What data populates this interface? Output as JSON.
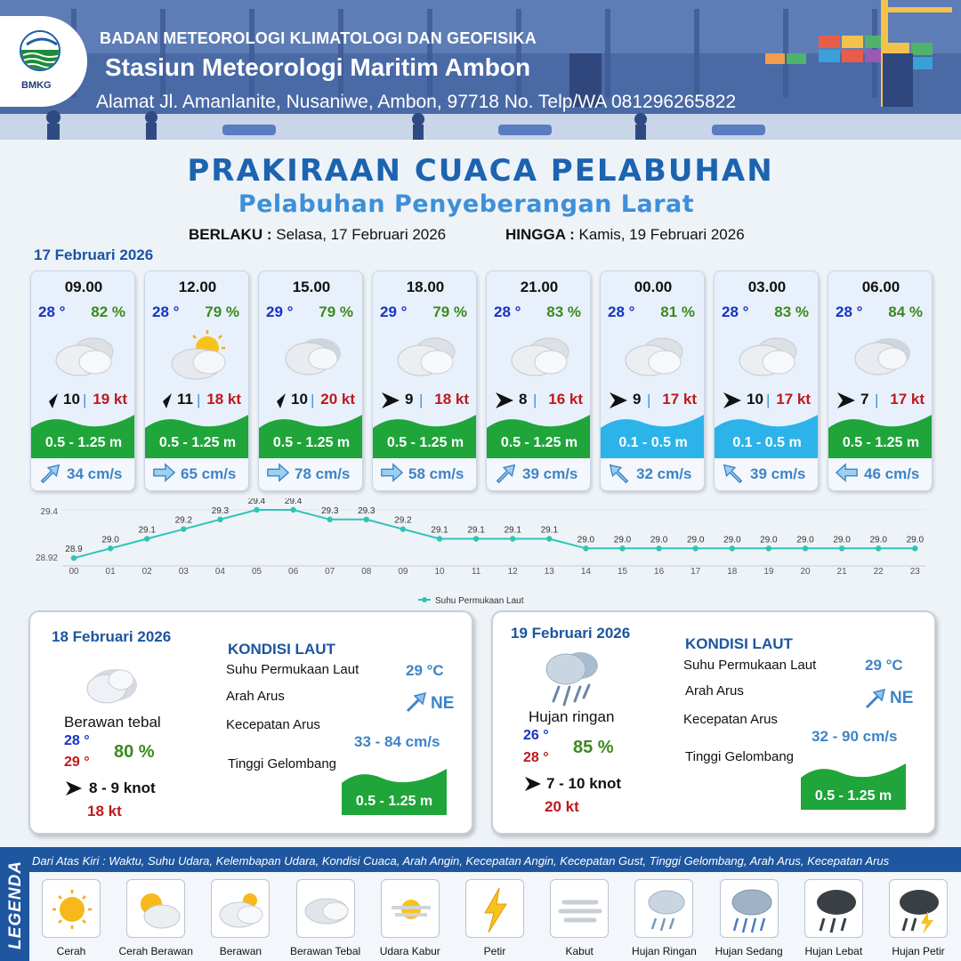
{
  "header": {
    "logo_label": "BMKG",
    "agency": "BADAN METEOROLOGI KLIMATOLOGI DAN GEOFISIKA",
    "station": "Stasiun Meteorologi Maritim Ambon",
    "address": "Alamat Jl. Amanlanite, Nusaniwe, Ambon, 97718   No. Telp/WA  081296265822"
  },
  "title": "PRAKIRAAN CUACA PELABUHAN",
  "subtitle": "Pelabuhan Penyeberangan Larat",
  "validity": {
    "from_label": "BERLAKU :",
    "from_value": "Selasa, 17 Februari 2026",
    "to_label": "HINGGA :",
    "to_value": "Kamis, 19 Februari 2026"
  },
  "main_date": "17 Februari 2026",
  "forecasts": [
    {
      "time": "09.00",
      "temp": "28 °",
      "humidity": "82 %",
      "weather": "Berawan",
      "wind_dir_icon": "wind-arrow-northeast-icon",
      "wind_speed": "10",
      "gust": "19 kt",
      "wave": "0.5 - 1.25 m",
      "wave_color": "#1fa53a",
      "current_dir_icon": "current-arrow-northeast-icon",
      "current": "34 cm/s"
    },
    {
      "time": "12.00",
      "temp": "28 °",
      "humidity": "79 %",
      "weather": "Cerah Berawan",
      "wind_dir_icon": "wind-arrow-northeast-icon",
      "wind_speed": "11",
      "gust": "18 kt",
      "wave": "0.5 - 1.25 m",
      "wave_color": "#1fa53a",
      "current_dir_icon": "current-arrow-east-icon",
      "current": "65 cm/s"
    },
    {
      "time": "15.00",
      "temp": "29 °",
      "humidity": "79 %",
      "weather": "Berawan Tebal",
      "wind_dir_icon": "wind-arrow-northeast-icon",
      "wind_speed": "10",
      "gust": "20 kt",
      "wave": "0.5 - 1.25 m",
      "wave_color": "#1fa53a",
      "current_dir_icon": "current-arrow-east-icon",
      "current": "78 cm/s"
    },
    {
      "time": "18.00",
      "temp": "29 °",
      "humidity": "79 %",
      "weather": "Berawan",
      "wind_dir_icon": "wind-arrow-east-icon",
      "wind_speed": "9",
      "gust": "18 kt",
      "wave": "0.5 - 1.25 m",
      "wave_color": "#1fa53a",
      "current_dir_icon": "current-arrow-east-icon",
      "current": "58 cm/s"
    },
    {
      "time": "21.00",
      "temp": "28 °",
      "humidity": "83 %",
      "weather": "Berawan",
      "wind_dir_icon": "wind-arrow-east-icon",
      "wind_speed": "8",
      "gust": "16 kt",
      "wave": "0.5 - 1.25 m",
      "wave_color": "#1fa53a",
      "current_dir_icon": "current-arrow-northeast-icon",
      "current": "39 cm/s"
    },
    {
      "time": "00.00",
      "temp": "28 °",
      "humidity": "81 %",
      "weather": "Berawan",
      "wind_dir_icon": "wind-arrow-east-icon",
      "wind_speed": "9",
      "gust": "17 kt",
      "wave": "0.1 - 0.5 m",
      "wave_color": "#2cb3ea",
      "current_dir_icon": "current-arrow-northwest-icon",
      "current": "32 cm/s"
    },
    {
      "time": "03.00",
      "temp": "28 °",
      "humidity": "83 %",
      "weather": "Berawan",
      "wind_dir_icon": "wind-arrow-east-icon",
      "wind_speed": "10",
      "gust": "17 kt",
      "wave": "0.1 - 0.5 m",
      "wave_color": "#2cb3ea",
      "current_dir_icon": "current-arrow-northwest-icon",
      "current": "39 cm/s"
    },
    {
      "time": "06.00",
      "temp": "28 °",
      "humidity": "84 %",
      "weather": "Berawan Tebal",
      "wind_dir_icon": "wind-arrow-east-icon",
      "wind_speed": "7",
      "gust": "17 kt",
      "wave": "0.5 - 1.25 m",
      "wave_color": "#1fa53a",
      "current_dir_icon": "current-arrow-west-icon",
      "current": "46 cm/s"
    }
  ],
  "chart_data": {
    "type": "line",
    "title": "",
    "xlabel": "",
    "ylabel": "",
    "x": [
      "00",
      "01",
      "02",
      "03",
      "04",
      "05",
      "06",
      "07",
      "08",
      "09",
      "10",
      "11",
      "12",
      "13",
      "14",
      "15",
      "16",
      "17",
      "18",
      "19",
      "20",
      "21",
      "22",
      "23"
    ],
    "series": [
      {
        "name": "Suhu Permukaan Laut",
        "values": [
          28.9,
          29.0,
          29.1,
          29.2,
          29.3,
          29.4,
          29.4,
          29.3,
          29.3,
          29.2,
          29.1,
          29.1,
          29.1,
          29.1,
          29.0,
          29.0,
          29.0,
          29.0,
          29.0,
          29.0,
          29.0,
          29.0,
          29.0,
          29.0
        ],
        "labels": [
          "28.9",
          "29.0",
          "29.1",
          "29.2",
          "29.3",
          "29.4",
          "29.4",
          "29.3",
          "29.3",
          "29.2",
          "29.1",
          "29.1",
          "29.1",
          "29.1",
          "29.0",
          "29.0",
          "29.0",
          "29.0",
          "29.0",
          "29.0",
          "29.0",
          "29.0",
          "29.0",
          "29.0"
        ],
        "color": "#2ec4b6"
      }
    ],
    "ylim": [
      28.92,
      29.4
    ],
    "y_tick_labels": [
      "29.4",
      "28.92"
    ],
    "grid": false,
    "legend": "bottom"
  },
  "days": [
    {
      "date": "18 Februari 2026",
      "weather": "Berawan tebal",
      "temp_min": "28 °",
      "temp_max": "29 °",
      "humidity": "80 %",
      "wind": "8  - 9 knot",
      "gust": "18 kt",
      "kondisi_title": "KONDISI LAUT",
      "sst_label": "Suhu Permukaan Laut",
      "sst_value": "29 °C",
      "current_dir_label": "Arah Arus",
      "current_dir_value": "NE",
      "current_speed_label": "Kecepatan Arus",
      "current_speed_value": "33 - 84 cm/s",
      "wave_label": "Tinggi Gelombang",
      "wave_value": "0.5 - 1.25 m"
    },
    {
      "date": "19 Februari 2026",
      "weather": "Hujan ringan",
      "temp_min": "26 °",
      "temp_max": "28 °",
      "humidity": "85 %",
      "wind": "7  - 10 knot",
      "gust": "20 kt",
      "kondisi_title": "KONDISI LAUT",
      "sst_label": "Suhu Permukaan Laut",
      "sst_value": "29 °C",
      "current_dir_label": "Arah Arus",
      "current_dir_value": "NE",
      "current_speed_label": "Kecepatan Arus",
      "current_speed_value": "32 - 90 cm/s",
      "wave_label": "Tinggi Gelombang",
      "wave_value": "0.5 - 1.25 m"
    }
  ],
  "legend": {
    "title": "LEGENDA",
    "caption": "Dari Atas Kiri : Waktu, Suhu Udara, Kelembapan Udara, Kondisi Cuaca, Arah Angin, Kecepatan Angin, Kecepatan Gust, Tinggi Gelombang, Arah Arus, Kecepatan Arus",
    "items": [
      "Cerah",
      "Cerah Berawan",
      "Berawan",
      "Berawan Tebal",
      "Udara Kabur",
      "Petir",
      "Kabut",
      "Hujan Ringan",
      "Hujan Sedang",
      "Hujan Lebat",
      "Hujan Petir"
    ]
  },
  "colors": {
    "title_blue": "#1c63b0",
    "temp_blue": "#1533c8",
    "humidity_green": "#3b8a1e",
    "gust_red": "#c0181c",
    "wave_green": "#1fa53a",
    "wave_cyan": "#2cb3ea",
    "current_blue": "#3d84c6",
    "legend_bar": "#1e56a0"
  }
}
